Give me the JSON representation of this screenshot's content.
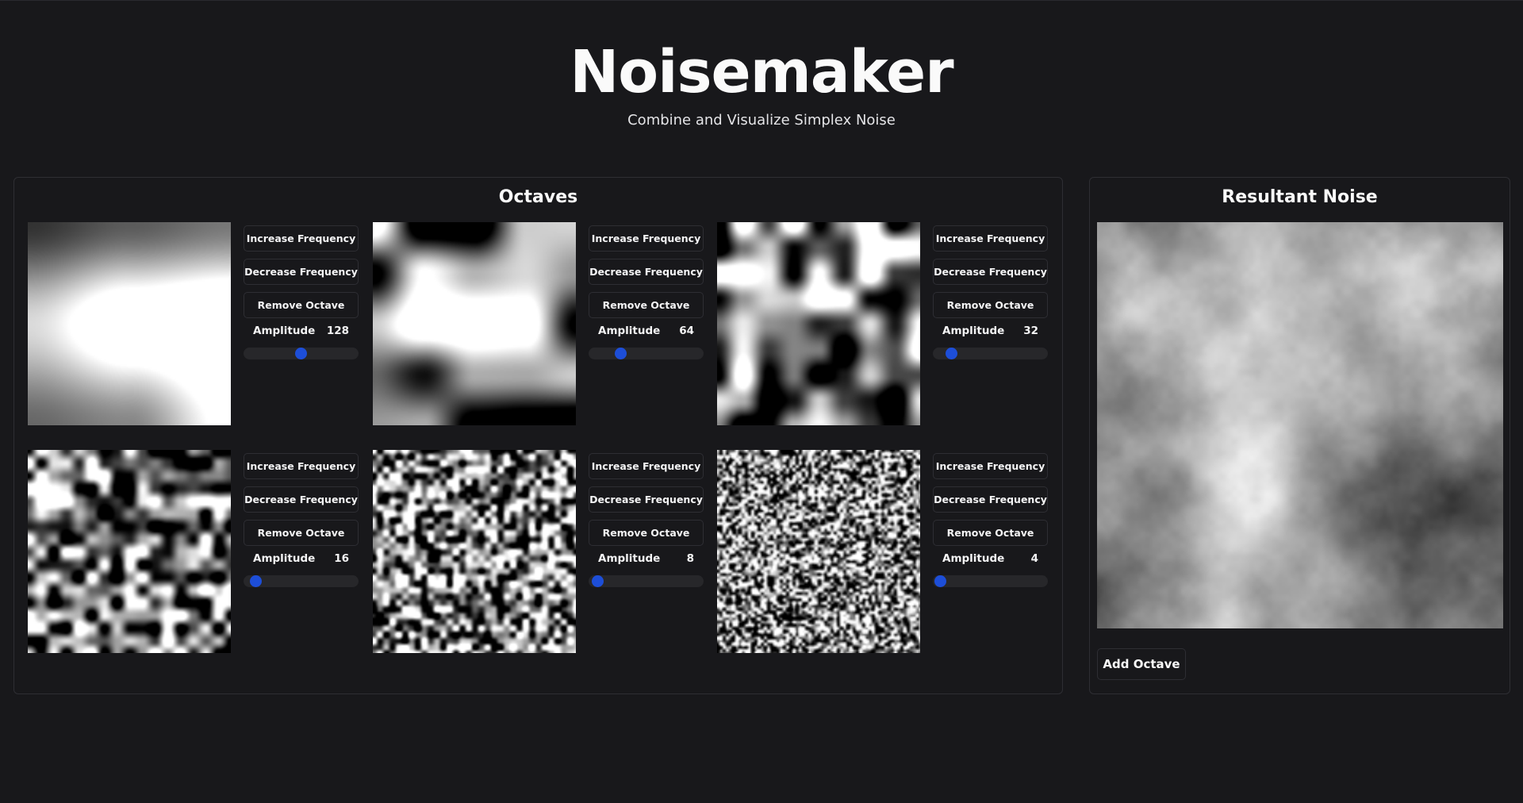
{
  "app": {
    "title": "Noisemaker",
    "subtitle": "Combine and Visualize Simplex Noise"
  },
  "octaves_panel": {
    "title": "Octaves",
    "increase_label": "Increase Frequency",
    "decrease_label": "Decrease Frequency",
    "remove_label": "Remove Octave",
    "amplitude_label": "Amplitude",
    "amplitude_max": 256,
    "items": [
      {
        "amplitude": "128",
        "amplitude_value": 128,
        "feature_scale": 1
      },
      {
        "amplitude": "64",
        "amplitude_value": 64,
        "feature_scale": 2
      },
      {
        "amplitude": "32",
        "amplitude_value": 32,
        "feature_scale": 4
      },
      {
        "amplitude": "16",
        "amplitude_value": 16,
        "feature_scale": 8
      },
      {
        "amplitude": "8",
        "amplitude_value": 8,
        "feature_scale": 16
      },
      {
        "amplitude": "4",
        "amplitude_value": 4,
        "feature_scale": 32
      }
    ]
  },
  "result_panel": {
    "title": "Resultant Noise",
    "add_octave_label": "Add Octave"
  },
  "colors": {
    "background": "#18181b",
    "border": "#2e2e33",
    "accent": "#1d4ed8",
    "slider_track": "#27272a"
  }
}
